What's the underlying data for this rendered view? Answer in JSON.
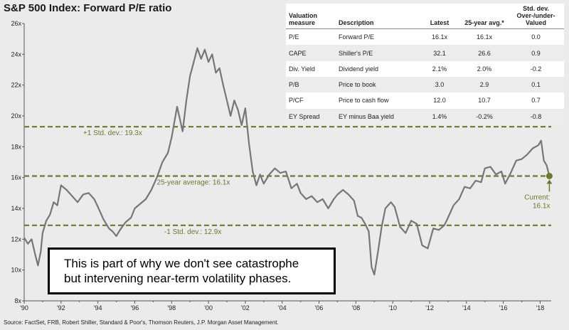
{
  "title": "S&P 500 Index: Forward P/E ratio",
  "source": "Source: FactSet, FRB, Robert Shiller, Standard & Poor's, Thomson Reuters, J.P. Morgan Asset Management.",
  "callout": {
    "line1": "This is part of why we don't see catastrophe",
    "line2": "but intervening near-term volatility phases."
  },
  "table": {
    "headers": [
      "Valuation measure",
      "Description",
      "Latest",
      "25-year avg.*",
      "Std. dev. Over-/under-Valued"
    ],
    "rows": [
      [
        "P/E",
        "Forward P/E",
        "16.1x",
        "16.1x",
        "0.0"
      ],
      [
        "CAPE",
        "Shiller's P/E",
        "32.1",
        "26.6",
        "0.9"
      ],
      [
        "Div. Yield",
        "Dividend yield",
        "2.1%",
        "2.0%",
        "-0.2"
      ],
      [
        "P/B",
        "Price to book",
        "3.0",
        "2.9",
        "0.1"
      ],
      [
        "P/CF",
        "Price to cash flow",
        "12.0",
        "10.7",
        "0.7"
      ],
      [
        "EY Spread",
        "EY minus Baa yield",
        "1.4%",
        "-0.2%",
        "-0.8"
      ]
    ]
  },
  "colors": {
    "line": "#767676",
    "reference": "#6b7a2a",
    "background": "#ebebeb"
  },
  "chart_data": {
    "type": "line",
    "title": "S&P 500 Index: Forward P/E ratio",
    "xlim": [
      1990,
      2018.6
    ],
    "ylim": [
      8,
      26
    ],
    "x_ticks": [
      {
        "value": 1990,
        "label": "'90"
      },
      {
        "value": 1992,
        "label": "'92"
      },
      {
        "value": 1994,
        "label": "'94"
      },
      {
        "value": 1996,
        "label": "'96"
      },
      {
        "value": 1998,
        "label": "'98"
      },
      {
        "value": 2000,
        "label": "'00"
      },
      {
        "value": 2002,
        "label": "'02"
      },
      {
        "value": 2004,
        "label": "'04"
      },
      {
        "value": 2006,
        "label": "'06"
      },
      {
        "value": 2008,
        "label": "'08"
      },
      {
        "value": 2010,
        "label": "'10"
      },
      {
        "value": 2012,
        "label": "'12"
      },
      {
        "value": 2014,
        "label": "'14"
      },
      {
        "value": 2016,
        "label": "'16"
      },
      {
        "value": 2018,
        "label": "'18"
      }
    ],
    "y_ticks": [
      {
        "value": 8,
        "label": "8x"
      },
      {
        "value": 10,
        "label": "10x"
      },
      {
        "value": 12,
        "label": "12x"
      },
      {
        "value": 14,
        "label": "14x"
      },
      {
        "value": 16,
        "label": "16x"
      },
      {
        "value": 18,
        "label": "18x"
      },
      {
        "value": 20,
        "label": "20x"
      },
      {
        "value": 22,
        "label": "22x"
      },
      {
        "value": 24,
        "label": "24x"
      },
      {
        "value": 26,
        "label": "26x"
      }
    ],
    "reference_lines": [
      {
        "value": 19.3,
        "label": "+1 Std. dev.: 19.3x",
        "label_x": 1993.2
      },
      {
        "value": 16.1,
        "label": "25-year average: 16.1x",
        "label_x": 1997.2
      },
      {
        "value": 12.9,
        "label": "-1 Std. dev.: 12.9x",
        "label_x": 1997.6
      }
    ],
    "current": {
      "value": 16.1,
      "label_line1": "Current:",
      "label_line2": "16.1x"
    },
    "series": [
      {
        "values": [
          [
            1990.0,
            12.1
          ],
          [
            1990.2,
            11.7
          ],
          [
            1990.4,
            12.0
          ],
          [
            1990.6,
            11.0
          ],
          [
            1990.75,
            10.3
          ],
          [
            1990.9,
            11.2
          ],
          [
            1991.0,
            12.4
          ],
          [
            1991.2,
            13.2
          ],
          [
            1991.4,
            13.6
          ],
          [
            1991.6,
            14.4
          ],
          [
            1991.8,
            14.2
          ],
          [
            1992.0,
            15.5
          ],
          [
            1992.3,
            15.2
          ],
          [
            1992.6,
            14.8
          ],
          [
            1992.9,
            14.4
          ],
          [
            1993.2,
            14.9
          ],
          [
            1993.5,
            15.0
          ],
          [
            1993.8,
            14.6
          ],
          [
            1994.0,
            14.1
          ],
          [
            1994.3,
            13.3
          ],
          [
            1994.6,
            12.7
          ],
          [
            1994.8,
            12.5
          ],
          [
            1995.0,
            12.2
          ],
          [
            1995.2,
            12.6
          ],
          [
            1995.5,
            13.1
          ],
          [
            1995.8,
            13.4
          ],
          [
            1996.0,
            14.0
          ],
          [
            1996.3,
            14.3
          ],
          [
            1996.6,
            14.6
          ],
          [
            1996.9,
            15.2
          ],
          [
            1997.2,
            16.0
          ],
          [
            1997.5,
            17.0
          ],
          [
            1997.8,
            17.6
          ],
          [
            1998.0,
            18.6
          ],
          [
            1998.3,
            20.6
          ],
          [
            1998.6,
            19.0
          ],
          [
            1998.8,
            21.0
          ],
          [
            1999.0,
            22.6
          ],
          [
            1999.2,
            23.5
          ],
          [
            1999.4,
            24.4
          ],
          [
            1999.6,
            23.7
          ],
          [
            1999.8,
            24.3
          ],
          [
            2000.0,
            23.5
          ],
          [
            2000.2,
            24.0
          ],
          [
            2000.4,
            22.8
          ],
          [
            2000.6,
            23.1
          ],
          [
            2000.8,
            22.0
          ],
          [
            2001.0,
            21.0
          ],
          [
            2001.2,
            20.0
          ],
          [
            2001.4,
            21.0
          ],
          [
            2001.6,
            20.4
          ],
          [
            2001.8,
            19.4
          ],
          [
            2002.0,
            20.5
          ],
          [
            2002.2,
            18.2
          ],
          [
            2002.4,
            16.4
          ],
          [
            2002.6,
            15.5
          ],
          [
            2002.8,
            16.2
          ],
          [
            2003.0,
            15.6
          ],
          [
            2003.3,
            16.2
          ],
          [
            2003.6,
            16.6
          ],
          [
            2003.9,
            16.3
          ],
          [
            2004.2,
            16.4
          ],
          [
            2004.5,
            15.3
          ],
          [
            2004.8,
            15.6
          ],
          [
            2005.0,
            15.0
          ],
          [
            2005.3,
            14.6
          ],
          [
            2005.6,
            14.8
          ],
          [
            2005.9,
            14.4
          ],
          [
            2006.2,
            14.6
          ],
          [
            2006.5,
            14.0
          ],
          [
            2006.8,
            14.6
          ],
          [
            2007.0,
            14.9
          ],
          [
            2007.3,
            15.2
          ],
          [
            2007.6,
            14.9
          ],
          [
            2007.9,
            14.5
          ],
          [
            2008.1,
            13.5
          ],
          [
            2008.3,
            13.4
          ],
          [
            2008.5,
            13.0
          ],
          [
            2008.7,
            12.5
          ],
          [
            2008.85,
            10.2
          ],
          [
            2009.0,
            9.7
          ],
          [
            2009.2,
            11.2
          ],
          [
            2009.4,
            12.8
          ],
          [
            2009.6,
            14.0
          ],
          [
            2009.9,
            14.4
          ],
          [
            2010.1,
            14.1
          ],
          [
            2010.4,
            12.8
          ],
          [
            2010.7,
            12.4
          ],
          [
            2011.0,
            13.2
          ],
          [
            2011.3,
            13.0
          ],
          [
            2011.6,
            11.6
          ],
          [
            2011.9,
            11.4
          ],
          [
            2012.2,
            12.7
          ],
          [
            2012.5,
            12.6
          ],
          [
            2012.8,
            12.9
          ],
          [
            2013.0,
            13.4
          ],
          [
            2013.3,
            14.2
          ],
          [
            2013.6,
            14.6
          ],
          [
            2013.9,
            15.4
          ],
          [
            2014.2,
            15.3
          ],
          [
            2014.5,
            15.8
          ],
          [
            2014.8,
            15.7
          ],
          [
            2015.0,
            16.6
          ],
          [
            2015.3,
            16.7
          ],
          [
            2015.6,
            16.2
          ],
          [
            2015.9,
            16.4
          ],
          [
            2016.1,
            15.6
          ],
          [
            2016.4,
            16.3
          ],
          [
            2016.7,
            17.1
          ],
          [
            2017.0,
            17.2
          ],
          [
            2017.3,
            17.5
          ],
          [
            2017.6,
            17.9
          ],
          [
            2017.9,
            18.1
          ],
          [
            2018.05,
            18.4
          ],
          [
            2018.2,
            17.1
          ],
          [
            2018.35,
            16.8
          ],
          [
            2018.5,
            16.1
          ]
        ]
      }
    ]
  }
}
